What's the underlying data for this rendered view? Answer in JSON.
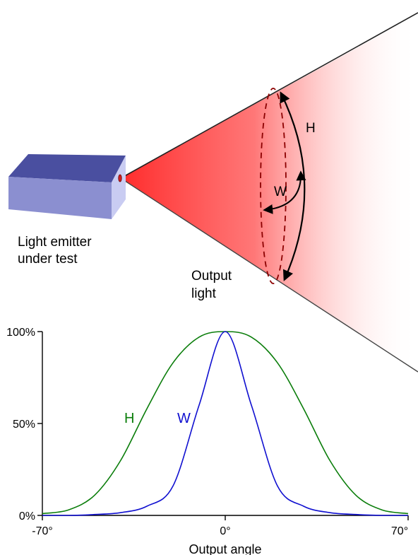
{
  "diagram": {
    "emitter_label_line1": "Light emitter",
    "emitter_label_line2": "under test",
    "output_label_line1": "Output",
    "output_label_line2": "light",
    "arc_label_h": "H",
    "arc_label_w": "W"
  },
  "colors": {
    "beam": "#ff3a3a",
    "box_top": "#4a4fa0",
    "box_front": "#8b8fd0",
    "box_side": "#c9ccf2",
    "dashed_ellipse": "#8b0000",
    "series_h": "#0a7d0a",
    "series_w": "#1010d0"
  },
  "chart_data": {
    "type": "line",
    "xlabel": "Output angle",
    "ylabel": "",
    "x_ticks": [
      "-70°",
      "0°",
      "70°"
    ],
    "y_ticks": [
      "0%",
      "50%",
      "100%"
    ],
    "xlim": [
      -70,
      70
    ],
    "ylim": [
      0,
      100
    ],
    "x": [
      -70,
      -60,
      -50,
      -40,
      -30,
      -20,
      -10,
      0,
      10,
      20,
      30,
      40,
      50,
      60,
      70
    ],
    "series": [
      {
        "name": "H",
        "values": [
          1,
          3,
          11,
          30,
          58,
          83,
          97,
          100,
          97,
          83,
          58,
          30,
          11,
          3,
          1
        ]
      },
      {
        "name": "W",
        "values": [
          0,
          0,
          0.5,
          1.5,
          5,
          16,
          60,
          100,
          60,
          16,
          5,
          1.5,
          0.5,
          0,
          0
        ]
      }
    ]
  }
}
